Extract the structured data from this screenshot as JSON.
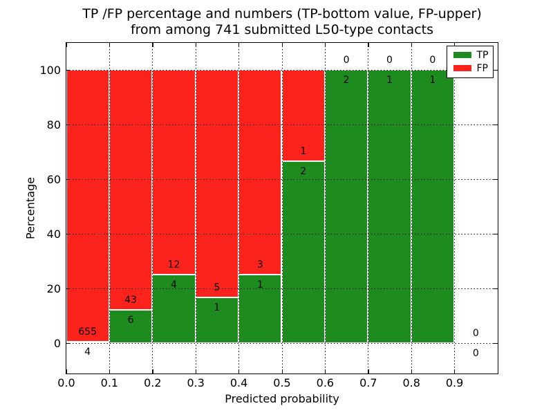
{
  "figure": {
    "title_line1": "TP /FP percentage and numbers (TP-bottom value, FP-upper)",
    "title_line2": "from among 741 submitted L50-type contacts"
  },
  "chart_data": {
    "type": "bar",
    "stacked": true,
    "title": "TP /FP percentage and numbers (TP-bottom value, FP-upper) from among 741 submitted L50-type contacts",
    "xlabel": "Predicted probability",
    "ylabel": "Percentage",
    "total_contacts": 741,
    "xlim": [
      0.0,
      1.0
    ],
    "ylim": [
      -11,
      110
    ],
    "x_tick_values": [
      0.0,
      0.1,
      0.2,
      0.3,
      0.4,
      0.5,
      0.6,
      0.7,
      0.8,
      0.9
    ],
    "x_tick_labels": [
      "0.0",
      "0.1",
      "0.2",
      "0.3",
      "0.4",
      "0.5",
      "0.6",
      "0.7",
      "0.8",
      "0.9"
    ],
    "y_tick_values": [
      0,
      20,
      40,
      60,
      80,
      100
    ],
    "y_tick_labels": [
      "0",
      "20",
      "40",
      "60",
      "80",
      "100"
    ],
    "grid": {
      "visible": true,
      "style": "dotted",
      "drawn_above_bars": true
    },
    "colors": {
      "tp": "#1e8b1e",
      "fp": "#fb231b",
      "bar_edge": "#ffffff",
      "text": "#000000"
    },
    "legend": {
      "position": "upper-right",
      "entries": [
        {
          "label": "TP",
          "color": "#1e8b1e"
        },
        {
          "label": "FP",
          "color": "#fb231b"
        }
      ]
    },
    "bins": [
      {
        "range": [
          0.0,
          0.1
        ],
        "tp": 4,
        "fp": 655,
        "tp_pct": 0.61
      },
      {
        "range": [
          0.1,
          0.2
        ],
        "tp": 6,
        "fp": 43,
        "tp_pct": 12.24
      },
      {
        "range": [
          0.2,
          0.3
        ],
        "tp": 4,
        "fp": 12,
        "tp_pct": 25.0
      },
      {
        "range": [
          0.3,
          0.4
        ],
        "tp": 1,
        "fp": 5,
        "tp_pct": 16.67
      },
      {
        "range": [
          0.4,
          0.5
        ],
        "tp": 1,
        "fp": 3,
        "tp_pct": 25.0
      },
      {
        "range": [
          0.5,
          0.6
        ],
        "tp": 2,
        "fp": 1,
        "tp_pct": 66.67
      },
      {
        "range": [
          0.6,
          0.7
        ],
        "tp": 2,
        "fp": 0,
        "tp_pct": 100.0
      },
      {
        "range": [
          0.7,
          0.8
        ],
        "tp": 1,
        "fp": 0,
        "tp_pct": 100.0
      },
      {
        "range": [
          0.8,
          0.9
        ],
        "tp": 1,
        "fp": 0,
        "tp_pct": 100.0
      },
      {
        "range": [
          0.9,
          1.0
        ],
        "tp": 0,
        "fp": 0,
        "tp_pct": null
      }
    ]
  }
}
